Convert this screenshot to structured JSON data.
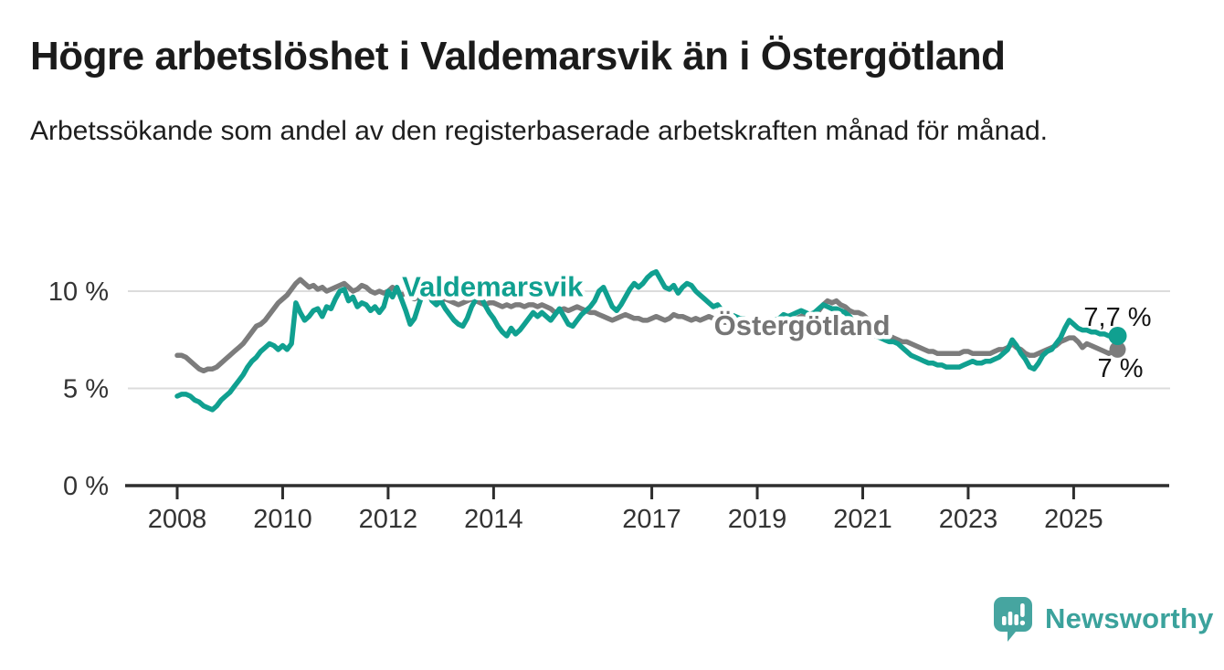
{
  "header": {
    "title": "Högre arbetslöshet i Valdemarsvik än i Östergötland",
    "subtitle": "Arbetssökande som andel av den registerbaserade arbetskraften månad för månad."
  },
  "chart_data": {
    "type": "line",
    "title": "Högre arbetslöshet i Valdemarsvik än i Östergötland",
    "subtitle": "Arbetssökande som andel av den registerbaserade arbetskraften månad för månad.",
    "unit": "%",
    "frequency": "monthly",
    "x_start_year": 2008,
    "points_per_year": 12,
    "ylim": [
      0,
      11.7
    ],
    "grid": "horizontal",
    "legend_position": "inline-labels",
    "yticks": [
      {
        "value": 0,
        "label": "0 %"
      },
      {
        "value": 5,
        "label": "5 %"
      },
      {
        "value": 10,
        "label": "10 %"
      }
    ],
    "xticks": [
      {
        "value": 2008,
        "label": "2008"
      },
      {
        "value": 2010,
        "label": "2010"
      },
      {
        "value": 2012,
        "label": "2012"
      },
      {
        "value": 2014,
        "label": "2014"
      },
      {
        "value": 2017,
        "label": "2017"
      },
      {
        "value": 2019,
        "label": "2019"
      },
      {
        "value": 2021,
        "label": "2021"
      },
      {
        "value": 2023,
        "label": "2023"
      },
      {
        "value": 2025,
        "label": "2025"
      }
    ],
    "series": [
      {
        "id": "ostergotland",
        "name": "Östergötland",
        "color": "#7c7c7c",
        "label_color": "#757575",
        "end_label": "7 %",
        "end_label_side": "below",
        "label_pos": {
          "year": 2019.85,
          "value": 8.27
        },
        "values": [
          6.7,
          6.7,
          6.6,
          6.4,
          6.2,
          6.0,
          5.9,
          6.0,
          6.0,
          6.1,
          6.3,
          6.5,
          6.7,
          6.9,
          7.1,
          7.3,
          7.6,
          7.9,
          8.2,
          8.3,
          8.5,
          8.8,
          9.1,
          9.4,
          9.6,
          9.8,
          10.1,
          10.4,
          10.6,
          10.4,
          10.2,
          10.3,
          10.1,
          10.2,
          10.0,
          10.1,
          10.2,
          10.3,
          10.4,
          10.2,
          10.0,
          10.1,
          10.3,
          10.2,
          10.0,
          9.9,
          10.0,
          9.9,
          10.0,
          10.2,
          10.0,
          9.8,
          9.9,
          9.7,
          9.6,
          9.7,
          9.8,
          9.7,
          9.6,
          9.6,
          9.5,
          9.6,
          9.5,
          9.4,
          9.3,
          9.4,
          9.5,
          9.6,
          9.5,
          9.4,
          9.3,
          9.4,
          9.4,
          9.3,
          9.2,
          9.3,
          9.2,
          9.3,
          9.3,
          9.2,
          9.3,
          9.3,
          9.2,
          9.3,
          9.2,
          9.1,
          8.9,
          9.0,
          9.1,
          9.0,
          9.1,
          9.2,
          9.1,
          9.0,
          8.9,
          8.9,
          8.8,
          8.7,
          8.6,
          8.5,
          8.6,
          8.7,
          8.8,
          8.7,
          8.6,
          8.6,
          8.5,
          8.5,
          8.6,
          8.7,
          8.6,
          8.5,
          8.6,
          8.8,
          8.7,
          8.7,
          8.6,
          8.5,
          8.6,
          8.5,
          8.6,
          8.7,
          8.6,
          8.5,
          8.4,
          8.4,
          8.3,
          8.4,
          8.3,
          8.3,
          8.2,
          8.3,
          8.3,
          8.2,
          8.3,
          8.3,
          8.4,
          8.5,
          8.6,
          8.5,
          8.6,
          8.6,
          8.7,
          8.8,
          8.8,
          8.9,
          9.0,
          9.3,
          9.5,
          9.4,
          9.5,
          9.3,
          9.2,
          9.0,
          8.9,
          8.9,
          8.8,
          8.6,
          8.4,
          8.2,
          8.0,
          7.9,
          7.7,
          7.6,
          7.5,
          7.4,
          7.4,
          7.3,
          7.2,
          7.1,
          7.0,
          6.9,
          6.9,
          6.8,
          6.8,
          6.8,
          6.8,
          6.8,
          6.8,
          6.9,
          6.9,
          6.8,
          6.8,
          6.8,
          6.8,
          6.8,
          6.9,
          7.0,
          7.0,
          7.1,
          7.3,
          7.1,
          7.0,
          6.8,
          6.7,
          6.7,
          6.8,
          6.9,
          7.0,
          7.1,
          7.2,
          7.4,
          7.5,
          7.6,
          7.6,
          7.4,
          7.1,
          7.3,
          7.2,
          7.1,
          7.0,
          6.9,
          6.8,
          6.9,
          7.0
        ]
      },
      {
        "id": "valdemarsvik",
        "name": "Valdemarsvik",
        "color": "#10a090",
        "label_color": "#10a090",
        "end_label": "7,7 %",
        "end_label_side": "above",
        "label_pos": {
          "year": 2013.98,
          "value": 10.25
        },
        "values": [
          4.6,
          4.7,
          4.7,
          4.6,
          4.4,
          4.3,
          4.1,
          4.0,
          3.9,
          4.1,
          4.4,
          4.6,
          4.8,
          5.1,
          5.4,
          5.7,
          6.1,
          6.4,
          6.6,
          6.9,
          7.1,
          7.3,
          7.2,
          7.0,
          7.2,
          7.0,
          7.3,
          9.4,
          8.9,
          8.5,
          8.7,
          9.0,
          9.1,
          8.7,
          9.2,
          9.1,
          9.6,
          10.0,
          10.1,
          9.5,
          9.7,
          9.2,
          9.4,
          9.3,
          9.0,
          9.2,
          8.9,
          9.2,
          10.0,
          9.7,
          10.2,
          9.6,
          9.0,
          8.3,
          8.6,
          9.3,
          10.0,
          10.1,
          9.5,
          9.3,
          9.5,
          9.1,
          8.8,
          8.5,
          8.3,
          8.2,
          8.6,
          9.2,
          9.6,
          9.8,
          9.3,
          8.9,
          8.6,
          8.2,
          7.9,
          7.7,
          8.1,
          7.8,
          8.0,
          8.3,
          8.6,
          8.9,
          8.7,
          8.9,
          8.7,
          8.5,
          8.8,
          9.1,
          8.7,
          8.3,
          8.2,
          8.5,
          8.8,
          9.0,
          9.2,
          9.5,
          10.0,
          10.2,
          9.7,
          9.2,
          9.0,
          9.3,
          9.7,
          10.1,
          10.4,
          10.2,
          10.4,
          10.7,
          10.9,
          11.0,
          10.6,
          10.2,
          10.1,
          10.3,
          9.9,
          10.2,
          10.4,
          10.3,
          10.0,
          9.8,
          9.6,
          9.4,
          9.2,
          9.3,
          9.0,
          8.9,
          8.8,
          8.7,
          8.6,
          8.6,
          8.5,
          8.4,
          8.4,
          8.3,
          8.3,
          8.4,
          8.5,
          8.6,
          8.8,
          8.7,
          8.8,
          8.9,
          9.0,
          8.9,
          8.8,
          8.9,
          9.1,
          9.3,
          9.2,
          9.1,
          9.1,
          9.0,
          8.9,
          8.7,
          8.4,
          8.1,
          8.0,
          7.9,
          7.8,
          7.7,
          7.6,
          7.5,
          7.4,
          7.4,
          7.3,
          7.1,
          6.9,
          6.7,
          6.6,
          6.5,
          6.4,
          6.3,
          6.3,
          6.2,
          6.2,
          6.1,
          6.1,
          6.1,
          6.1,
          6.2,
          6.3,
          6.4,
          6.3,
          6.3,
          6.4,
          6.4,
          6.5,
          6.6,
          6.8,
          7.0,
          7.5,
          7.2,
          6.8,
          6.5,
          6.1,
          6.0,
          6.3,
          6.7,
          6.9,
          7.0,
          7.3,
          7.6,
          8.1,
          8.5,
          8.3,
          8.1,
          8.0,
          8.0,
          7.9,
          7.9,
          7.8,
          7.8,
          7.7,
          7.8,
          7.7
        ]
      }
    ],
    "colors": {
      "valdemarsvik": "#10a090",
      "ostergotland": "#7c7c7c",
      "gridline": "#dcdcdc",
      "axis": "#2e2e2e",
      "tick_text": "#333333",
      "end_value_text": "#141414"
    }
  },
  "footer": {
    "brand": "Newsworthy",
    "brand_color": "#3ba29c"
  }
}
